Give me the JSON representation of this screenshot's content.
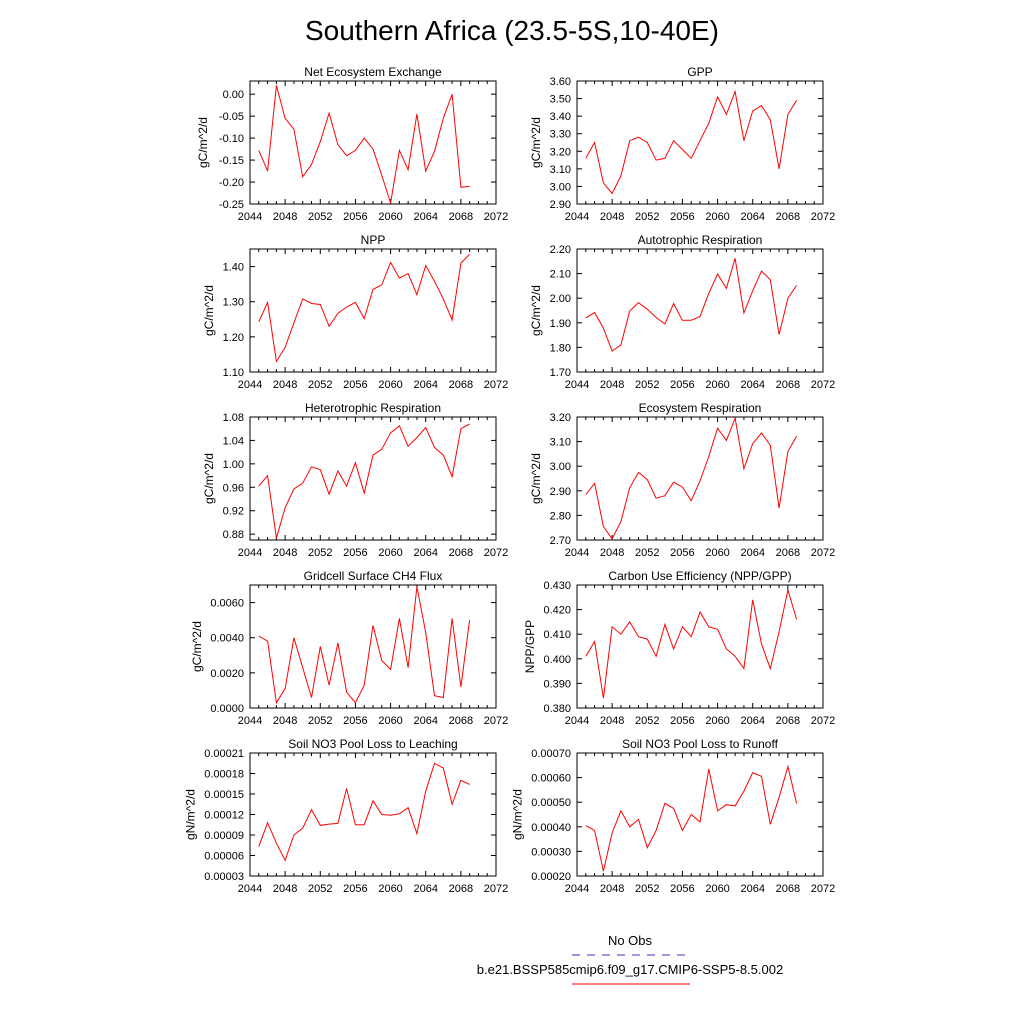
{
  "figure": {
    "title": "Southern Africa (23.5-5S,10-40E)",
    "legend": [
      {
        "label": "No Obs",
        "color": "#3333cc",
        "dash": "dashed"
      },
      {
        "label": "b.e21.BSSP585cmip6.f09_g17.CMIP6-SSP5-8.5.002",
        "color": "#ff0000",
        "dash": "solid"
      }
    ]
  },
  "chart_data": [
    {
      "type": "line",
      "title": "Net Ecosystem Exchange",
      "ylabel": "gC/m^2/d",
      "xlim": [
        2044,
        2072
      ],
      "xticks": [
        2044,
        2048,
        2052,
        2056,
        2060,
        2064,
        2068,
        2072
      ],
      "ylim": [
        -0.25,
        0.03
      ],
      "yticks": [
        -0.25,
        -0.2,
        -0.15,
        -0.1,
        -0.05,
        0.0
      ],
      "yfmt": 2,
      "series": [
        {
          "color": "#ff0000",
          "x": [
            2045,
            2046,
            2047,
            2048,
            2049,
            2050,
            2051,
            2052,
            2053,
            2054,
            2055,
            2056,
            2057,
            2058,
            2059,
            2060,
            2061,
            2062,
            2063,
            2064,
            2065,
            2066,
            2067,
            2068,
            2069
          ],
          "y": [
            -0.128,
            -0.175,
            0.02,
            -0.055,
            -0.08,
            -0.188,
            -0.16,
            -0.108,
            -0.043,
            -0.115,
            -0.14,
            -0.128,
            -0.1,
            -0.125,
            -0.185,
            -0.248,
            -0.128,
            -0.172,
            -0.045,
            -0.175,
            -0.13,
            -0.055,
            0.0,
            -0.212,
            -0.21
          ]
        }
      ]
    },
    {
      "type": "line",
      "title": "GPP",
      "ylabel": "gC/m^2/d",
      "xlim": [
        2044,
        2072
      ],
      "xticks": [
        2044,
        2048,
        2052,
        2056,
        2060,
        2064,
        2068,
        2072
      ],
      "ylim": [
        2.9,
        3.6
      ],
      "yticks": [
        2.9,
        3.0,
        3.1,
        3.2,
        3.3,
        3.4,
        3.5,
        3.6
      ],
      "yfmt": 2,
      "series": [
        {
          "color": "#ff0000",
          "x": [
            2045,
            2046,
            2047,
            2048,
            2049,
            2050,
            2051,
            2052,
            2053,
            2054,
            2055,
            2056,
            2057,
            2058,
            2059,
            2060,
            2061,
            2062,
            2063,
            2064,
            2065,
            2066,
            2067,
            2068,
            2069
          ],
          "y": [
            3.16,
            3.25,
            3.02,
            2.96,
            3.06,
            3.26,
            3.28,
            3.25,
            3.15,
            3.16,
            3.26,
            3.21,
            3.16,
            3.26,
            3.36,
            3.51,
            3.41,
            3.54,
            3.26,
            3.43,
            3.46,
            3.38,
            3.1,
            3.41,
            3.49
          ]
        }
      ]
    },
    {
      "type": "line",
      "title": "NPP",
      "ylabel": "gC/m^2/d",
      "xlim": [
        2044,
        2072
      ],
      "xticks": [
        2044,
        2048,
        2052,
        2056,
        2060,
        2064,
        2068,
        2072
      ],
      "ylim": [
        1.1,
        1.45
      ],
      "yticks": [
        1.1,
        1.2,
        1.3,
        1.4
      ],
      "yfmt": 2,
      "series": [
        {
          "color": "#ff0000",
          "x": [
            2045,
            2046,
            2047,
            2048,
            2049,
            2050,
            2051,
            2052,
            2053,
            2054,
            2055,
            2056,
            2057,
            2058,
            2059,
            2060,
            2061,
            2062,
            2063,
            2064,
            2065,
            2066,
            2067,
            2068,
            2069
          ],
          "y": [
            1.243,
            1.298,
            1.13,
            1.17,
            1.24,
            1.308,
            1.295,
            1.292,
            1.23,
            1.267,
            1.285,
            1.298,
            1.252,
            1.335,
            1.348,
            1.412,
            1.367,
            1.38,
            1.32,
            1.403,
            1.358,
            1.308,
            1.248,
            1.41,
            1.435
          ]
        }
      ]
    },
    {
      "type": "line",
      "title": "Autotrophic Respiration",
      "ylabel": "gC/m^2/d",
      "xlim": [
        2044,
        2072
      ],
      "xticks": [
        2044,
        2048,
        2052,
        2056,
        2060,
        2064,
        2068,
        2072
      ],
      "ylim": [
        1.7,
        2.2
      ],
      "yticks": [
        1.7,
        1.8,
        1.9,
        2.0,
        2.1,
        2.2
      ],
      "yfmt": 2,
      "series": [
        {
          "color": "#ff0000",
          "x": [
            2045,
            2046,
            2047,
            2048,
            2049,
            2050,
            2051,
            2052,
            2053,
            2054,
            2055,
            2056,
            2057,
            2058,
            2059,
            2060,
            2061,
            2062,
            2063,
            2064,
            2065,
            2066,
            2067,
            2068,
            2069
          ],
          "y": [
            1.92,
            1.942,
            1.878,
            1.785,
            1.81,
            1.948,
            1.982,
            1.955,
            1.922,
            1.895,
            1.978,
            1.91,
            1.91,
            1.925,
            2.02,
            2.098,
            2.04,
            2.162,
            1.94,
            2.03,
            2.11,
            2.075,
            1.852,
            2.0,
            2.052
          ]
        }
      ]
    },
    {
      "type": "line",
      "title": "Heterotrophic Respiration",
      "ylabel": "gC/m^2/d",
      "xlim": [
        2044,
        2072
      ],
      "xticks": [
        2044,
        2048,
        2052,
        2056,
        2060,
        2064,
        2068,
        2072
      ],
      "ylim": [
        0.87,
        1.08
      ],
      "yticks": [
        0.88,
        0.92,
        0.96,
        1.0,
        1.04,
        1.08
      ],
      "yfmt": 2,
      "series": [
        {
          "color": "#ff0000",
          "x": [
            2045,
            2046,
            2047,
            2048,
            2049,
            2050,
            2051,
            2052,
            2053,
            2054,
            2055,
            2056,
            2057,
            2058,
            2059,
            2060,
            2061,
            2062,
            2063,
            2064,
            2065,
            2066,
            2067,
            2068,
            2069
          ],
          "y": [
            0.962,
            0.98,
            0.873,
            0.925,
            0.957,
            0.967,
            0.995,
            0.99,
            0.948,
            0.988,
            0.962,
            1.002,
            0.95,
            1.015,
            1.025,
            1.053,
            1.065,
            1.03,
            1.045,
            1.062,
            1.028,
            1.015,
            0.978,
            1.06,
            1.068
          ]
        }
      ]
    },
    {
      "type": "line",
      "title": "Ecosystem Respiration",
      "ylabel": "gC/m^2/d",
      "xlim": [
        2044,
        2072
      ],
      "xticks": [
        2044,
        2048,
        2052,
        2056,
        2060,
        2064,
        2068,
        2072
      ],
      "ylim": [
        2.7,
        3.2
      ],
      "yticks": [
        2.7,
        2.8,
        2.9,
        3.0,
        3.1,
        3.2
      ],
      "yfmt": 2,
      "series": [
        {
          "color": "#ff0000",
          "x": [
            2045,
            2046,
            2047,
            2048,
            2049,
            2050,
            2051,
            2052,
            2053,
            2054,
            2055,
            2056,
            2057,
            2058,
            2059,
            2060,
            2061,
            2062,
            2063,
            2064,
            2065,
            2066,
            2067,
            2068,
            2069
          ],
          "y": [
            2.885,
            2.93,
            2.755,
            2.705,
            2.775,
            2.912,
            2.975,
            2.945,
            2.87,
            2.88,
            2.935,
            2.915,
            2.86,
            2.94,
            3.04,
            3.155,
            3.105,
            3.195,
            2.99,
            3.092,
            3.135,
            3.085,
            2.83,
            3.06,
            3.122
          ]
        }
      ]
    },
    {
      "type": "line",
      "title": "Gridcell Surface CH4 Flux",
      "ylabel": "gC/m^2/d",
      "xlim": [
        2044,
        2072
      ],
      "xticks": [
        2044,
        2048,
        2052,
        2056,
        2060,
        2064,
        2068,
        2072
      ],
      "ylim": [
        0.0,
        0.007
      ],
      "yticks": [
        0.0,
        0.002,
        0.004,
        0.006
      ],
      "yfmt": 4,
      "series": [
        {
          "color": "#ff0000",
          "x": [
            2045,
            2046,
            2047,
            2048,
            2049,
            2050,
            2051,
            2052,
            2053,
            2054,
            2055,
            2056,
            2057,
            2058,
            2059,
            2060,
            2061,
            2062,
            2063,
            2064,
            2065,
            2066,
            2067,
            2068,
            2069
          ],
          "y": [
            0.0041,
            0.0038,
            0.0003,
            0.0011,
            0.004,
            0.0023,
            0.0006,
            0.0035,
            0.0013,
            0.0037,
            0.0009,
            0.0003,
            0.0013,
            0.0047,
            0.0027,
            0.0022,
            0.0051,
            0.0023,
            0.0069,
            0.0043,
            0.0007,
            0.0006,
            0.0051,
            0.0012,
            0.005
          ]
        }
      ]
    },
    {
      "type": "line",
      "title": "Carbon Use Efficiency (NPP/GPP)",
      "ylabel": "NPP/GPP",
      "xlim": [
        2044,
        2072
      ],
      "xticks": [
        2044,
        2048,
        2052,
        2056,
        2060,
        2064,
        2068,
        2072
      ],
      "ylim": [
        0.38,
        0.43
      ],
      "yticks": [
        0.38,
        0.39,
        0.4,
        0.41,
        0.42,
        0.43
      ],
      "yfmt": 3,
      "series": [
        {
          "color": "#ff0000",
          "x": [
            2045,
            2046,
            2047,
            2048,
            2049,
            2050,
            2051,
            2052,
            2053,
            2054,
            2055,
            2056,
            2057,
            2058,
            2059,
            2060,
            2061,
            2062,
            2063,
            2064,
            2065,
            2066,
            2067,
            2068,
            2069
          ],
          "y": [
            0.401,
            0.407,
            0.384,
            0.413,
            0.41,
            0.415,
            0.409,
            0.408,
            0.401,
            0.414,
            0.404,
            0.413,
            0.409,
            0.419,
            0.413,
            0.412,
            0.404,
            0.401,
            0.396,
            0.424,
            0.406,
            0.396,
            0.411,
            0.428,
            0.416
          ]
        }
      ]
    },
    {
      "type": "line",
      "title": "Soil NO3 Pool Loss to Leaching",
      "ylabel": "gN/m^2/d",
      "xlim": [
        2044,
        2072
      ],
      "xticks": [
        2044,
        2048,
        2052,
        2056,
        2060,
        2064,
        2068,
        2072
      ],
      "ylim": [
        3e-05,
        0.00021
      ],
      "yticks": [
        3e-05,
        6e-05,
        9e-05,
        0.00012,
        0.00015,
        0.00018,
        0.00021
      ],
      "yfmt": 5,
      "series": [
        {
          "color": "#ff0000",
          "x": [
            2045,
            2046,
            2047,
            2048,
            2049,
            2050,
            2051,
            2052,
            2053,
            2054,
            2055,
            2056,
            2057,
            2058,
            2059,
            2060,
            2061,
            2062,
            2063,
            2064,
            2065,
            2066,
            2067,
            2068,
            2069
          ],
          "y": [
            7.3e-05,
            0.000108,
            7.8e-05,
            5.3e-05,
            9e-05,
            0.0001,
            0.000127,
            0.000104,
            0.000106,
            0.000107,
            0.000158,
            0.000105,
            0.000105,
            0.00014,
            0.00012,
            0.000119,
            0.000121,
            0.00013,
            9.2e-05,
            0.000154,
            0.000195,
            0.000188,
            0.000135,
            0.00017,
            0.000164
          ]
        }
      ]
    },
    {
      "type": "line",
      "title": "Soil NO3 Pool Loss to Runoff",
      "ylabel": "gN/m^2/d",
      "xlim": [
        2044,
        2072
      ],
      "xticks": [
        2044,
        2048,
        2052,
        2056,
        2060,
        2064,
        2068,
        2072
      ],
      "ylim": [
        0.0002,
        0.0007
      ],
      "yticks": [
        0.0002,
        0.0003,
        0.0004,
        0.0005,
        0.0006,
        0.0007
      ],
      "yfmt": 5,
      "series": [
        {
          "color": "#ff0000",
          "x": [
            2045,
            2046,
            2047,
            2048,
            2049,
            2050,
            2051,
            2052,
            2053,
            2054,
            2055,
            2056,
            2057,
            2058,
            2059,
            2060,
            2061,
            2062,
            2063,
            2064,
            2065,
            2066,
            2067,
            2068,
            2069
          ],
          "y": [
            0.000405,
            0.000385,
            0.00022,
            0.000375,
            0.000465,
            0.0004,
            0.00043,
            0.000315,
            0.000385,
            0.000495,
            0.000475,
            0.000385,
            0.00045,
            0.00042,
            0.000635,
            0.000465,
            0.00049,
            0.000485,
            0.000545,
            0.00062,
            0.000605,
            0.00041,
            0.00052,
            0.000645,
            0.000495
          ]
        }
      ]
    }
  ]
}
